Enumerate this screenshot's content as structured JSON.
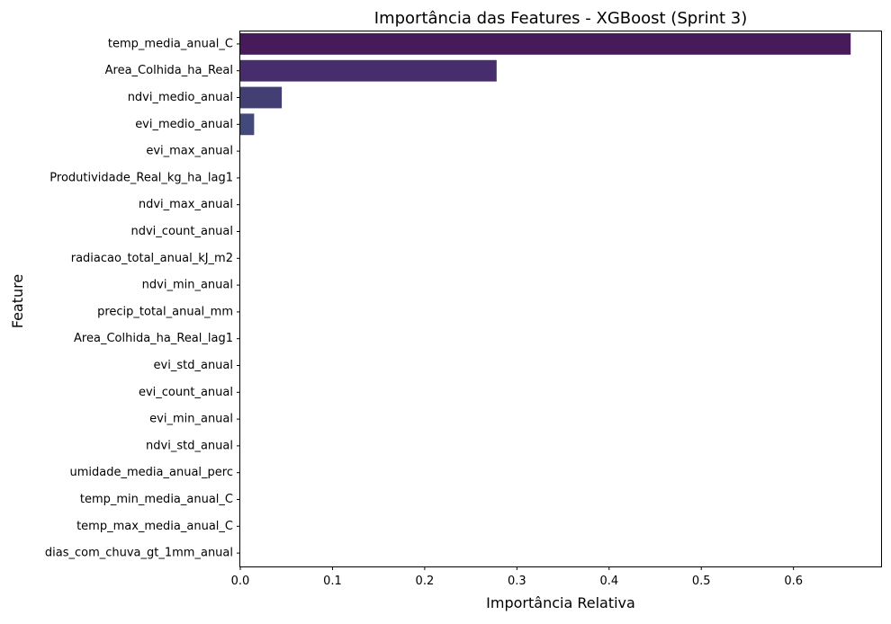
{
  "chart_data": {
    "type": "bar",
    "orientation": "horizontal",
    "title": "Importância das Features - XGBoost (Sprint 3)",
    "xlabel": "Importância Relativa",
    "ylabel": "Feature",
    "xlim": [
      0,
      0.695
    ],
    "xticks": [
      0.0,
      0.1,
      0.2,
      0.3,
      0.4,
      0.5,
      0.6
    ],
    "xtick_labels": [
      "0.0",
      "0.1",
      "0.2",
      "0.3",
      "0.4",
      "0.5",
      "0.6"
    ],
    "grid": false,
    "palette": "viridis",
    "categories": [
      "temp_media_anual_C",
      "Area_Colhida_ha_Real",
      "ndvi_medio_anual",
      "evi_medio_anual",
      "evi_max_anual",
      "Produtividade_Real_kg_ha_lag1",
      "ndvi_max_anual",
      "ndvi_count_anual",
      "radiacao_total_anual_kJ_m2",
      "ndvi_min_anual",
      "precip_total_anual_mm",
      "Area_Colhida_ha_Real_lag1",
      "evi_std_anual",
      "evi_count_anual",
      "evi_min_anual",
      "ndvi_std_anual",
      "umidade_media_anual_perc",
      "temp_min_media_anual_C",
      "temp_max_media_anual_C",
      "dias_com_chuva_gt_1mm_anual"
    ],
    "values": [
      0.662,
      0.278,
      0.045,
      0.015,
      0,
      0,
      0,
      0,
      0,
      0,
      0,
      0,
      0,
      0,
      0,
      0,
      0,
      0,
      0,
      0
    ],
    "colors": [
      "#471a5a",
      "#472d6c",
      "#443f72",
      "#424a7b"
    ]
  }
}
